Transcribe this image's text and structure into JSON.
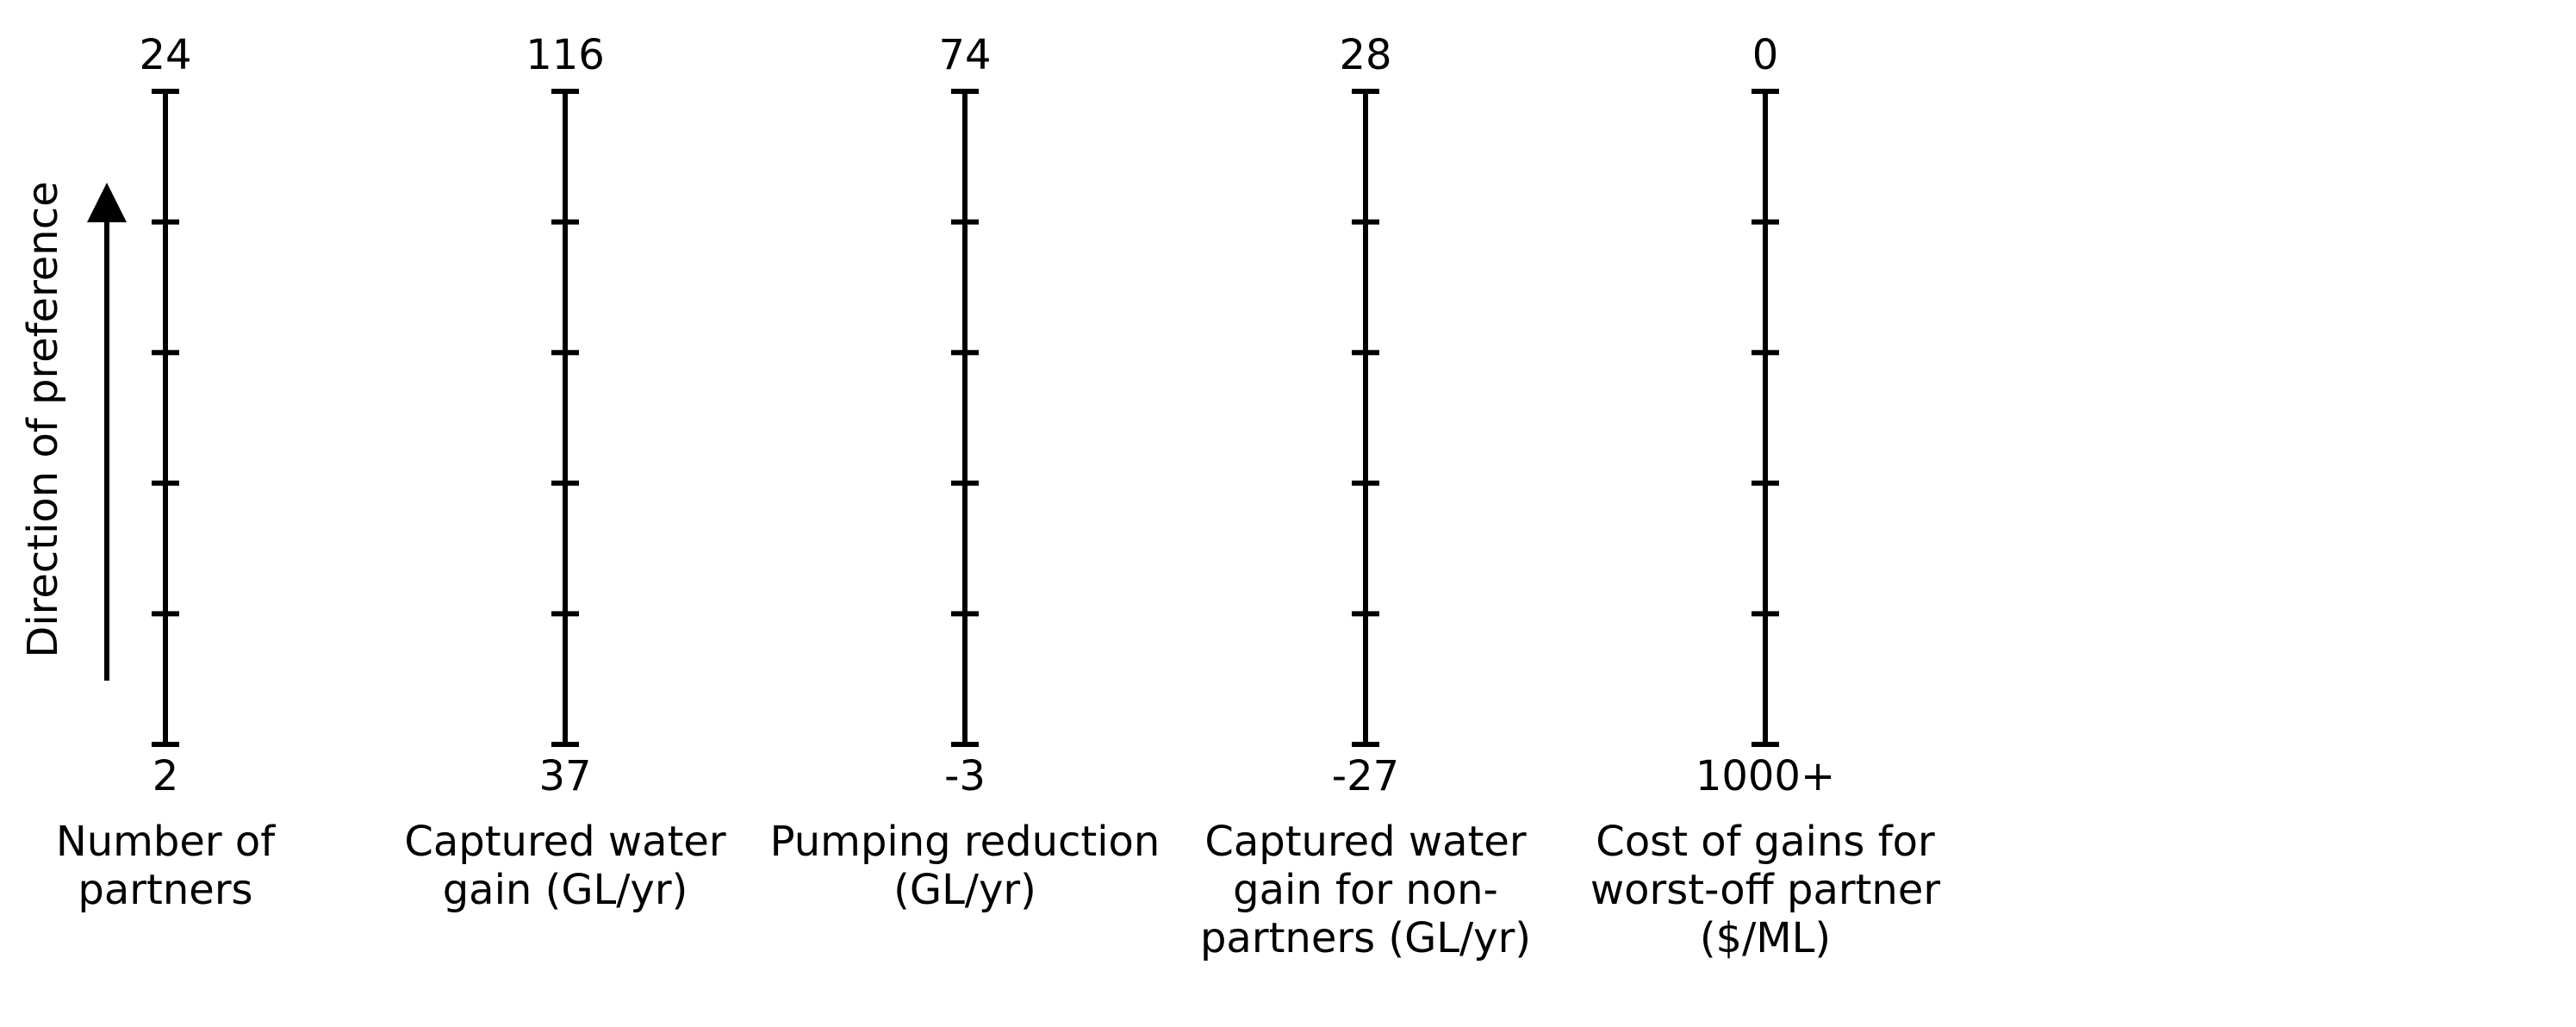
{
  "chart_data": {
    "type": "parallel-axes",
    "preference_label": "Direction of preference",
    "ticks_per_axis": 6,
    "axes": [
      {
        "name": "Number of partners",
        "name_lines": [
          "Number of",
          "partners"
        ],
        "top_label": "24",
        "bottom_label": "2"
      },
      {
        "name": "Captured water gain (GL/yr)",
        "name_lines": [
          "Captured water",
          "gain (GL/yr)"
        ],
        "top_label": "116",
        "bottom_label": "37"
      },
      {
        "name": "Pumping reduction (GL/yr)",
        "name_lines": [
          "Pumping reduction",
          "(GL/yr)"
        ],
        "top_label": "74",
        "bottom_label": "-3"
      },
      {
        "name": "Captured water gain for non-partners (GL/yr)",
        "name_lines": [
          "Captured water",
          "gain for non-",
          "partners (GL/yr)"
        ],
        "top_label": "28",
        "bottom_label": "-27"
      },
      {
        "name": "Cost of gains for worst-off partner ($/ML)",
        "name_lines": [
          "Cost of gains for",
          "worst-off partner",
          "($/ML)"
        ],
        "top_label": "0",
        "bottom_label": "1000+"
      }
    ],
    "colors": {
      "axis": "#000000",
      "background": "#ffffff"
    }
  }
}
